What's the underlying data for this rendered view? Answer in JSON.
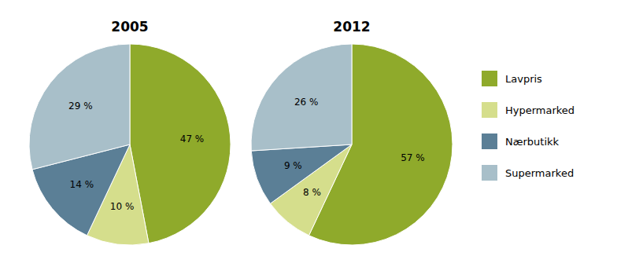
{
  "chart_data": [
    {
      "type": "pie",
      "title": "2005",
      "categories": [
        "Lavpris",
        "Hypermarked",
        "Nærbutikk",
        "Supermarked"
      ],
      "values": [
        47,
        10,
        14,
        29
      ],
      "value_labels": [
        "47 %",
        "10 %",
        "14 %",
        "29 %"
      ],
      "colors": [
        "#8faa2b",
        "#d5de8c",
        "#5b7f96",
        "#a8bfc9"
      ],
      "data_labels": true
    },
    {
      "type": "pie",
      "title": "2012",
      "categories": [
        "Lavpris",
        "Hypermarked",
        "Nærbutikk",
        "Supermarked"
      ],
      "values": [
        57,
        8,
        9,
        26
      ],
      "value_labels": [
        "57 %",
        "8 %",
        "9 %",
        "26 %"
      ],
      "colors": [
        "#8faa2b",
        "#d5de8c",
        "#5b7f96",
        "#a8bfc9"
      ],
      "data_labels": true
    }
  ]
}
